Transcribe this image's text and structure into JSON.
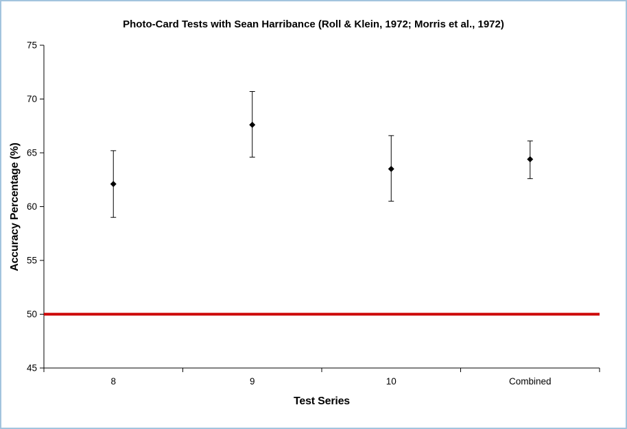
{
  "chart_data": {
    "type": "scatter",
    "title": "Photo-Card Tests with Sean Harribance (Roll & Klein, 1972; Morris et al., 1972)",
    "xlabel": "Test Series",
    "ylabel": "Accuracy Percentage (%)",
    "categories": [
      "8",
      "9",
      "10",
      "Combined"
    ],
    "series": [
      {
        "name": "Accuracy Percentage",
        "values": [
          62.1,
          67.6,
          63.5,
          64.4
        ],
        "error_upper": [
          65.2,
          70.7,
          66.6,
          66.1
        ],
        "error_lower": [
          59.0,
          64.6,
          60.5,
          62.6
        ]
      }
    ],
    "reference_line": {
      "value": 50,
      "color": "#cc0000"
    },
    "ylim": [
      45,
      75
    ],
    "ytick_step": 5,
    "grid": false,
    "legend": "none",
    "marker": "diamond",
    "marker_color": "#000000"
  },
  "frame": {
    "border_color": "#a3c4de",
    "background": "#ffffff"
  }
}
